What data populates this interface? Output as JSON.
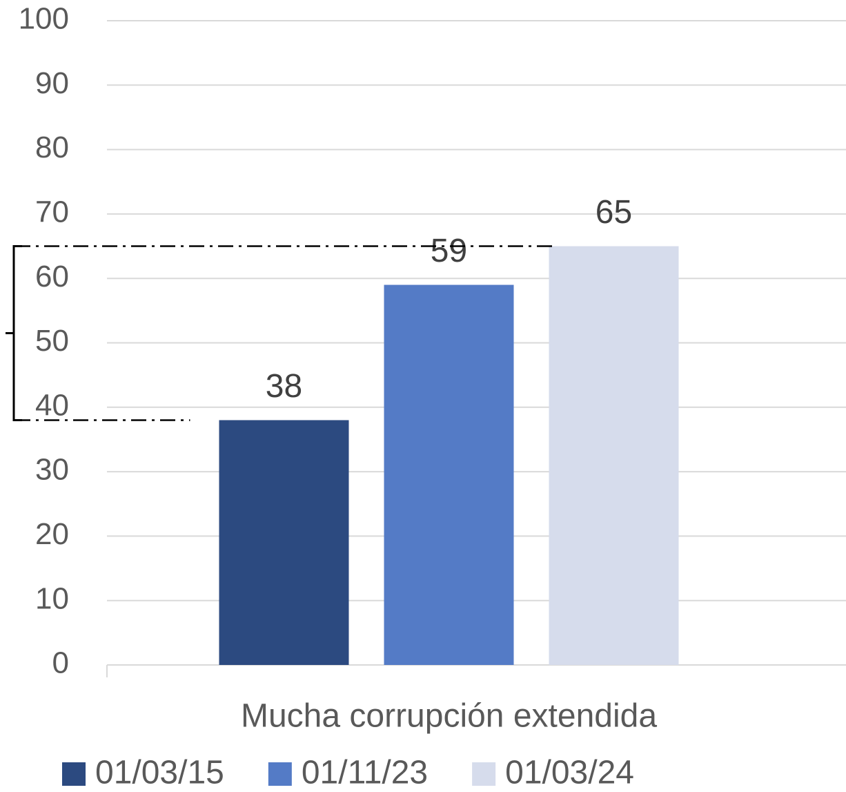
{
  "chart_data": {
    "type": "bar",
    "categories": [
      "Mucha corrupción extendida"
    ],
    "series": [
      {
        "name": "01/03/15",
        "color": "#2c4a80",
        "values": [
          38
        ]
      },
      {
        "name": "01/11/23",
        "color": "#547bc6",
        "values": [
          59
        ]
      },
      {
        "name": "01/03/24",
        "color": "#d6dcec",
        "values": [
          65
        ]
      }
    ],
    "ylim": [
      0,
      100
    ],
    "yticks": [
      0,
      10,
      20,
      30,
      40,
      50,
      60,
      70,
      80,
      90,
      100
    ],
    "grid": true,
    "legend": "bottom"
  }
}
